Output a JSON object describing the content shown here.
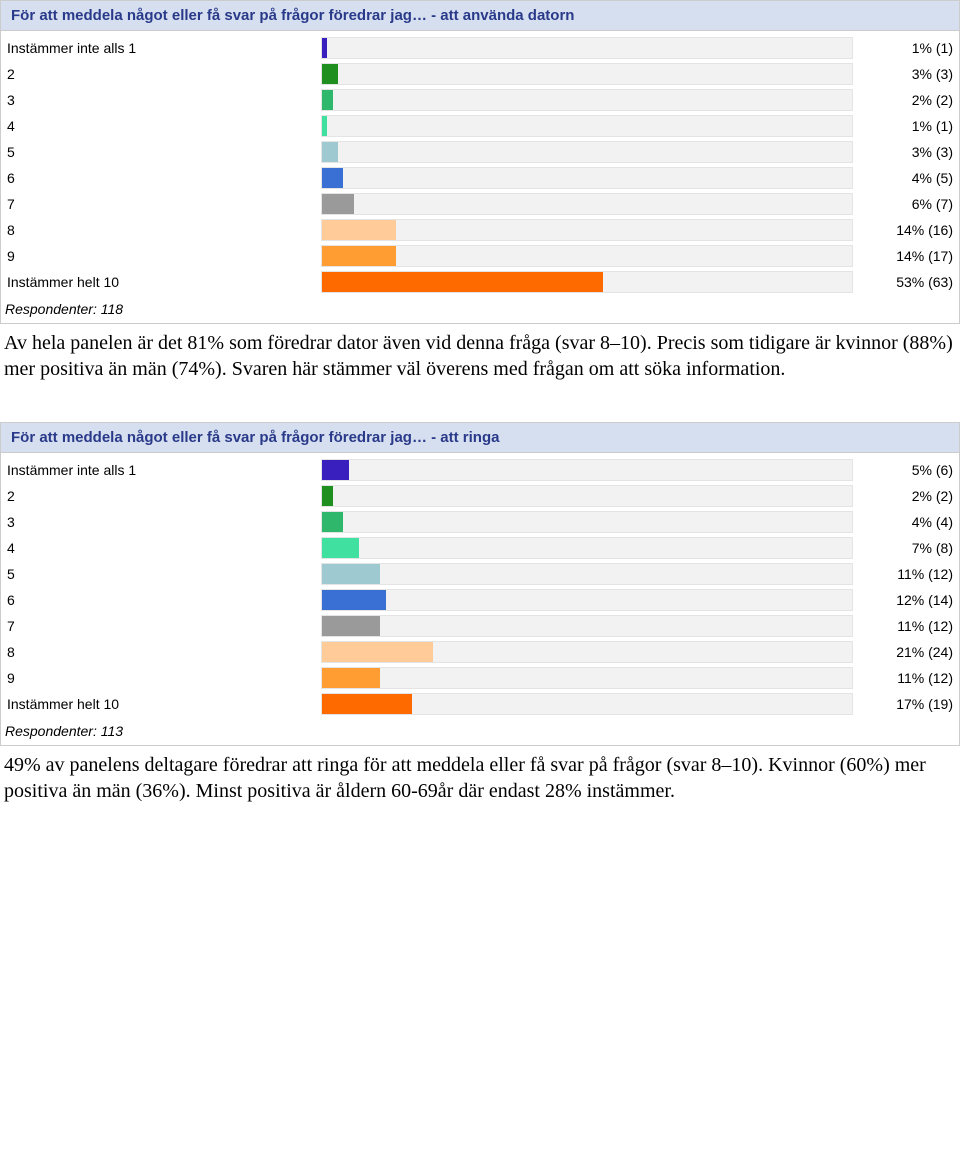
{
  "bar_colors": [
    "#3a1fbf",
    "#1f8f1f",
    "#2fb86b",
    "#3fe0a0",
    "#9fc9d1",
    "#3a6fd4",
    "#9a9a9a",
    "#ffcc99",
    "#ff9d33",
    "#ff6a00"
  ],
  "track_bg": "#f2f2f2",
  "title_bg": "#d6dfef",
  "title_color": "#2a3a8a",
  "charts": [
    {
      "title": "För att meddela något eller få svar på frågor föredrar jag… - att använda datorn",
      "respondents_label": "Respondenter: 118",
      "rows": [
        {
          "label": "Instämmer inte alls 1",
          "pct": 1,
          "count": 1,
          "value_text": "1% (1)"
        },
        {
          "label": "2",
          "pct": 3,
          "count": 3,
          "value_text": "3% (3)"
        },
        {
          "label": "3",
          "pct": 2,
          "count": 2,
          "value_text": "2% (2)"
        },
        {
          "label": "4",
          "pct": 1,
          "count": 1,
          "value_text": "1% (1)"
        },
        {
          "label": "5",
          "pct": 3,
          "count": 3,
          "value_text": "3% (3)"
        },
        {
          "label": "6",
          "pct": 4,
          "count": 5,
          "value_text": "4% (5)"
        },
        {
          "label": "7",
          "pct": 6,
          "count": 7,
          "value_text": "6% (7)"
        },
        {
          "label": "8",
          "pct": 14,
          "count": 16,
          "value_text": "14% (16)"
        },
        {
          "label": "9",
          "pct": 14,
          "count": 17,
          "value_text": "14% (17)"
        },
        {
          "label": "Instämmer helt 10",
          "pct": 53,
          "count": 63,
          "value_text": "53% (63)"
        }
      ]
    },
    {
      "title": "För att meddela något eller få svar på frågor föredrar jag… - att ringa",
      "respondents_label": "Respondenter: 113",
      "rows": [
        {
          "label": "Instämmer inte alls 1",
          "pct": 5,
          "count": 6,
          "value_text": "5% (6)"
        },
        {
          "label": "2",
          "pct": 2,
          "count": 2,
          "value_text": "2% (2)"
        },
        {
          "label": "3",
          "pct": 4,
          "count": 4,
          "value_text": "4% (4)"
        },
        {
          "label": "4",
          "pct": 7,
          "count": 8,
          "value_text": "7% (8)"
        },
        {
          "label": "5",
          "pct": 11,
          "count": 12,
          "value_text": "11% (12)"
        },
        {
          "label": "6",
          "pct": 12,
          "count": 14,
          "value_text": "12% (14)"
        },
        {
          "label": "7",
          "pct": 11,
          "count": 12,
          "value_text": "11% (12)"
        },
        {
          "label": "8",
          "pct": 21,
          "count": 24,
          "value_text": "21% (24)"
        },
        {
          "label": "9",
          "pct": 11,
          "count": 12,
          "value_text": "11% (12)"
        },
        {
          "label": "Instämmer helt 10",
          "pct": 17,
          "count": 19,
          "value_text": "17% (19)"
        }
      ]
    }
  ],
  "paragraphs": [
    "Av hela panelen är det 81% som föredrar dator även vid denna fråga (svar 8–10). Precis som tidigare är kvinnor (88%) mer positiva än män (74%). Svaren här stämmer väl överens med frågan om att söka information.",
    "49% av panelens deltagare föredrar att ringa för att meddela eller få svar på frågor (svar 8–10). Kvinnor (60%) mer positiva än män (36%). Minst positiva är åldern 60-69år där endast 28% instämmer."
  ]
}
